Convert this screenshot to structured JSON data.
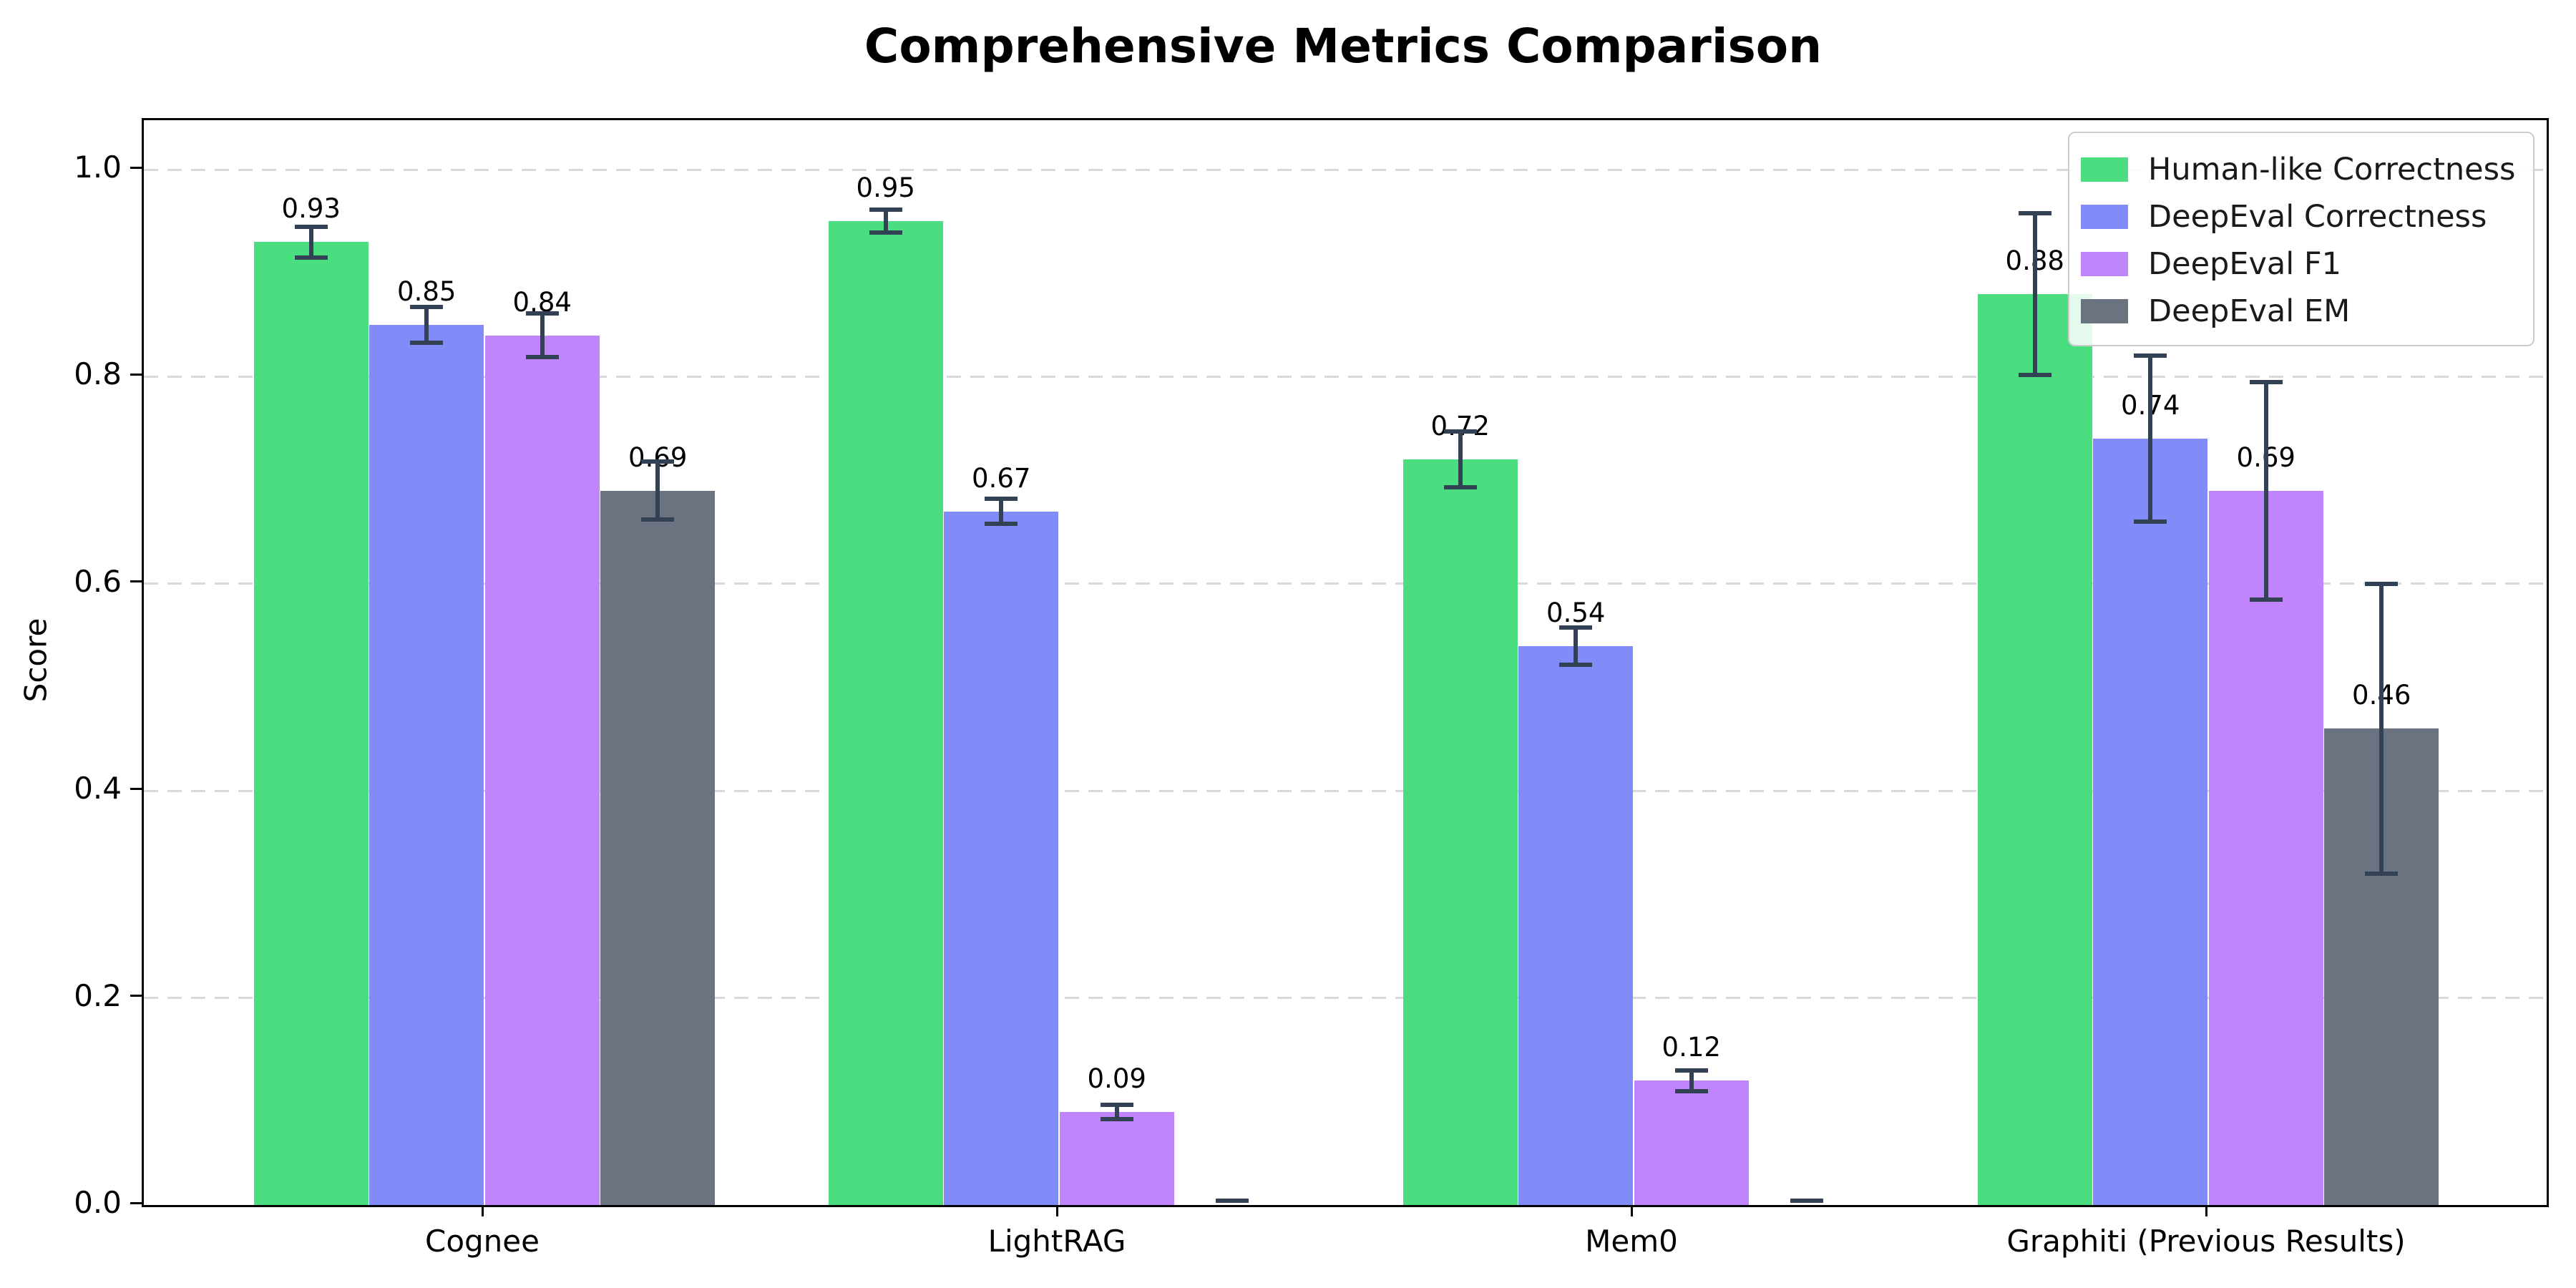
{
  "title": "Comprehensive Metrics Comparison",
  "chart_data": {
    "type": "bar",
    "title": "Comprehensive Metrics Comparison",
    "xlabel": "",
    "ylabel": "Score",
    "categories": [
      "Cognee",
      "LightRAG",
      "Mem0",
      "Graphiti (Previous Results)"
    ],
    "series": [
      {
        "name": "Human-like Correctness",
        "color": "#4ade80",
        "values": [
          0.93,
          0.95,
          0.72,
          0.88
        ],
        "errors": [
          0.015,
          0.011,
          0.027,
          0.078
        ],
        "labels": [
          "0.93",
          "0.95",
          "0.72",
          "0.88"
        ]
      },
      {
        "name": "DeepEval Correctness",
        "color": "#818cf8",
        "values": [
          0.85,
          0.67,
          0.54,
          0.74
        ],
        "errors": [
          0.017,
          0.012,
          0.018,
          0.08
        ],
        "labels": [
          "0.85",
          "0.67",
          "0.54",
          "0.74"
        ]
      },
      {
        "name": "DeepEval F1",
        "color": "#c084fc",
        "values": [
          0.84,
          0.09,
          0.12,
          0.69
        ],
        "errors": [
          0.021,
          0.007,
          0.01,
          0.105
        ],
        "labels": [
          "0.84",
          "0.09",
          "0.12",
          "0.69"
        ]
      },
      {
        "name": "DeepEval EM",
        "color": "#6b7280",
        "values": [
          0.69,
          0.0,
          0.0,
          0.46
        ],
        "errors": [
          0.028,
          0.004,
          0.004,
          0.14
        ],
        "labels": [
          "0.69",
          "",
          "",
          "0.46"
        ]
      }
    ],
    "yticks": [
      "0.0",
      "0.2",
      "0.4",
      "0.6",
      "0.8",
      "1.0"
    ],
    "ytick_values": [
      0.0,
      0.2,
      0.4,
      0.6,
      0.8,
      1.0
    ],
    "ylim": [
      0.0,
      1.048
    ],
    "grid": "horizontal-dashed",
    "legend_position": "upper-right",
    "error_bar_color": "#334155"
  }
}
